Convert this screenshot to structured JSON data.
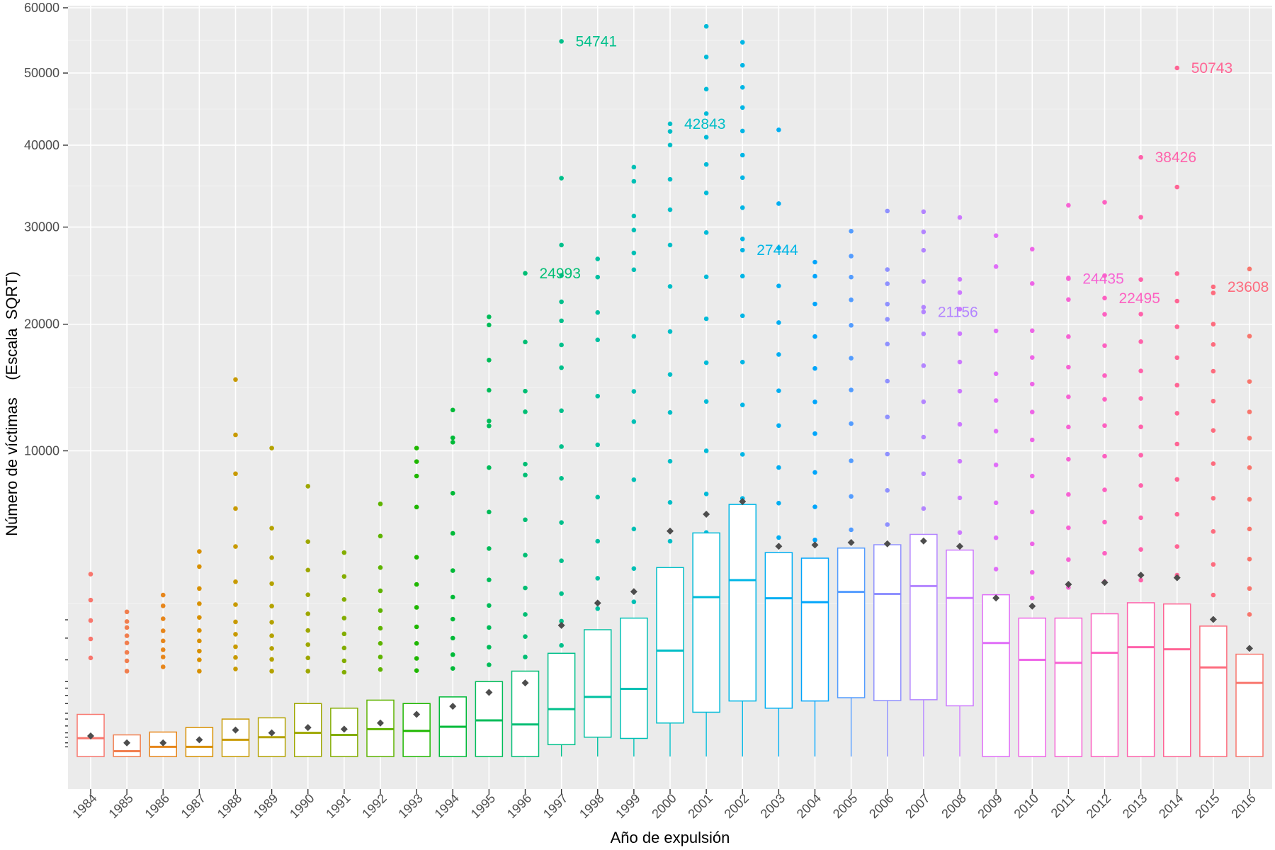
{
  "chart_data": {
    "type": "boxplot",
    "title": "",
    "xlabel": "Año de expulsión",
    "ylabel": "Número de víctimas    (Escala  SQRT)",
    "y_scale": "sqrt",
    "ylim": [
      0,
      60000
    ],
    "y_major_ticks": [
      10000,
      20000,
      30000,
      40000,
      50000,
      60000
    ],
    "y_tick_labels": [
      "10000",
      "20000",
      "30000",
      "40000",
      "50000",
      "60000"
    ],
    "y_rug_ticks": [
      2000,
      1500,
      1000,
      600,
      500,
      400,
      300,
      200,
      150,
      100,
      60,
      40,
      20,
      10
    ],
    "grid": true,
    "categories": [
      "1984",
      "1985",
      "1986",
      "1987",
      "1988",
      "1989",
      "1990",
      "1991",
      "1992",
      "1993",
      "1994",
      "1995",
      "1996",
      "1997",
      "1998",
      "1999",
      "2000",
      "2001",
      "2002",
      "2003",
      "2004",
      "2005",
      "2006",
      "2007",
      "2008",
      "2009",
      "2010",
      "2011",
      "2012",
      "2013",
      "2014",
      "2015",
      "2016"
    ],
    "colors": [
      "#F8766D",
      "#F17E4E",
      "#E7861B",
      "#D89000",
      "#C89A00",
      "#B4A200",
      "#9EA700",
      "#83AD00",
      "#5EB300",
      "#1FB700",
      "#00BA38",
      "#00BC59",
      "#00BE74",
      "#00C08B",
      "#00C1A1",
      "#00C0B5",
      "#00BEC7",
      "#00BBD8",
      "#00B6E6",
      "#00AEF2",
      "#00A5FB",
      "#539CFF",
      "#8F91FF",
      "#B385FF",
      "#CD79FF",
      "#E06EF8",
      "#EE66E7",
      "#F763D4",
      "#FD61C1",
      "#FF62AB",
      "#FF6595",
      "#FD6C7E",
      "#F8766D"
    ],
    "box_stats": [
      {
        "q1": 0,
        "median": 36,
        "q3": 190,
        "whisker_high": 190,
        "mean": 45
      },
      {
        "q1": 0,
        "median": 3,
        "q3": 50,
        "whisker_high": 50,
        "mean": 20
      },
      {
        "q1": 0,
        "median": 10,
        "q3": 64,
        "whisker_high": 64,
        "mean": 20
      },
      {
        "q1": 0,
        "median": 10,
        "q3": 90,
        "whisker_high": 90,
        "mean": 30
      },
      {
        "q1": 0,
        "median": 30,
        "q3": 150,
        "whisker_high": 150,
        "mean": 75
      },
      {
        "q1": 0,
        "median": 40,
        "q3": 160,
        "whisker_high": 160,
        "mean": 60
      },
      {
        "q1": 0,
        "median": 60,
        "q3": 300,
        "whisker_high": 300,
        "mean": 90
      },
      {
        "q1": 0,
        "median": 50,
        "q3": 250,
        "whisker_high": 250,
        "mean": 80
      },
      {
        "q1": 0,
        "median": 80,
        "q3": 340,
        "whisker_high": 340,
        "mean": 120
      },
      {
        "q1": 0,
        "median": 70,
        "q3": 300,
        "whisker_high": 300,
        "mean": 190
      },
      {
        "q1": 0,
        "median": 95,
        "q3": 380,
        "whisker_high": 380,
        "mean": 270
      },
      {
        "q1": 0,
        "median": 140,
        "q3": 600,
        "whisker_high": 600,
        "mean": 440
      },
      {
        "q1": 0,
        "median": 110,
        "q3": 780,
        "whisker_high": 780,
        "mean": 580
      },
      {
        "q1": 15,
        "median": 240,
        "q3": 1140,
        "whisker_high": 1140,
        "mean": 1840
      },
      {
        "q1": 40,
        "median": 380,
        "q3": 1720,
        "whisker_high": 1720,
        "mean": 2520
      },
      {
        "q1": 35,
        "median": 490,
        "q3": 2050,
        "whisker_high": 2050,
        "mean": 2910
      },
      {
        "q1": 120,
        "median": 1200,
        "q3": 3820,
        "whisker_high": 3820,
        "mean": 5440
      },
      {
        "q1": 210,
        "median": 2720,
        "q3": 5350,
        "whisker_high": 5350,
        "mean": 6280
      },
      {
        "q1": 330,
        "median": 3330,
        "q3": 6800,
        "whisker_high": 6800,
        "mean": 6960
      },
      {
        "q1": 250,
        "median": 2680,
        "q3": 4450,
        "whisker_high": 4450,
        "mean": 4730
      },
      {
        "q1": 330,
        "median": 2550,
        "q3": 4210,
        "whisker_high": 4210,
        "mean": 4790
      },
      {
        "q1": 370,
        "median": 2900,
        "q3": 4650,
        "whisker_high": 4650,
        "mean": 4900
      },
      {
        "q1": 335,
        "median": 2830,
        "q3": 4800,
        "whisker_high": 4800,
        "mean": 4840
      },
      {
        "q1": 345,
        "median": 3110,
        "q3": 5280,
        "whisker_high": 5280,
        "mean": 4970
      },
      {
        "q1": 275,
        "median": 2690,
        "q3": 4560,
        "whisker_high": 4560,
        "mean": 4730
      },
      {
        "q1": 0,
        "median": 1380,
        "q3": 2800,
        "whisker_high": 2800,
        "mean": 2690
      },
      {
        "q1": 0,
        "median": 1000,
        "q3": 2050,
        "whisker_high": 2050,
        "mean": 2420
      },
      {
        "q1": 0,
        "median": 940,
        "q3": 2050,
        "whisker_high": 2050,
        "mean": 3170
      },
      {
        "q1": 0,
        "median": 1150,
        "q3": 2180,
        "whisker_high": 2180,
        "mean": 3240
      },
      {
        "q1": 0,
        "median": 1280,
        "q3": 2530,
        "whisker_high": 2530,
        "mean": 3520
      },
      {
        "q1": 0,
        "median": 1230,
        "q3": 2490,
        "whisker_high": 2490,
        "mean": 3420
      },
      {
        "q1": 0,
        "median": 850,
        "q3": 1820,
        "whisker_high": 1820,
        "mean": 2010
      },
      {
        "q1": 0,
        "median": 580,
        "q3": 1120,
        "whisker_high": 1120,
        "mean": 1250
      }
    ],
    "outliers": [
      [
        1040,
        1480,
        1980,
        2620,
        3560
      ],
      [
        780,
        980,
        1160,
        1380,
        1560,
        1780,
        1950,
        2240
      ],
      [
        860,
        1060,
        1220,
        1430,
        1690,
        2030,
        2430,
        2790
      ],
      [
        780,
        1000,
        1190,
        1430,
        1700,
        2070,
        2500,
        3020,
        3860,
        4500
      ],
      [
        820,
        1050,
        1290,
        1600,
        1940,
        2470,
        3270,
        4720,
        6580,
        8560,
        11070,
        15210
      ],
      [
        780,
        1010,
        1250,
        1560,
        1930,
        2420,
        3200,
        4230,
        5580,
        10180
      ],
      [
        780,
        1040,
        1340,
        1700,
        2180,
        2800,
        3720,
        4940,
        7820
      ],
      [
        760,
        980,
        1260,
        1610,
        2050,
        2640,
        3470,
        4450
      ],
      [
        810,
        1060,
        1370,
        1760,
        2280,
        2940,
        3820,
        5200,
        6830
      ],
      [
        790,
        1030,
        1370,
        1800,
        2380,
        3170,
        4250,
        6660,
        8420,
        9310,
        10180
      ],
      [
        830,
        1110,
        1500,
        2020,
        2720,
        3700,
        5330,
        7420,
        10570,
        10870,
        12850
      ],
      [
        900,
        1280,
        1780,
        2440,
        3340,
        4630,
        6400,
        8930,
        11700,
        12050,
        14360,
        16820,
        19930,
        20690
      ],
      [
        1060,
        1540,
        2160,
        3040,
        4340,
        6000,
        8480,
        9150,
        12720,
        14290,
        18390,
        24993
      ],
      [
        1320,
        1960,
        2840,
        4100,
        5860,
        8280,
        10280,
        12800,
        16180,
        18130,
        20320,
        22130,
        24770,
        28000,
        35800,
        54741
      ],
      [
        1570,
        2340,
        3400,
        4960,
        7200,
        10400,
        13900,
        18580,
        21100,
        24600,
        26500
      ],
      [
        1680,
        2560,
        3780,
        5540,
        8200,
        12000,
        14270,
        18900,
        25360,
        27140,
        29660,
        31270,
        35410,
        37180
      ],
      [
        3570,
        4960,
        6910,
        9330,
        12670,
        15620,
        19330,
        23650,
        28000,
        32000,
        35660,
        40020,
        41820,
        42843
      ],
      [
        3770,
        5370,
        7380,
        10000,
        13490,
        16600,
        20510,
        24630,
        29380,
        34000,
        37520,
        41050,
        44240,
        47670,
        52380,
        57060
      ],
      [
        3570,
        5100,
        7130,
        9770,
        13230,
        16650,
        20790,
        24700,
        28670,
        32240,
        35860,
        38710,
        41880,
        45080,
        47930,
        51140,
        54600,
        27444
      ],
      [
        3820,
        5130,
        6870,
        8940,
        11720,
        14320,
        17300,
        20150,
        23700,
        27690,
        32720,
        42030
      ],
      [
        3740,
        5020,
        6670,
        8640,
        11160,
        13460,
        16120,
        18880,
        21920,
        24690,
        26160
      ],
      [
        4150,
        5500,
        7240,
        9360,
        11860,
        14380,
        16980,
        19900,
        22320,
        24600,
        26800,
        29540
      ],
      [
        4310,
        5760,
        7580,
        9790,
        12340,
        15080,
        18210,
        20460,
        21910,
        23920,
        25380,
        31850
      ],
      [
        4950,
        6580,
        8560,
        10920,
        13470,
        16350,
        19120,
        21610,
        24150,
        27430,
        29460,
        31770,
        21156
      ],
      [
        3970,
        5370,
        7160,
        9330,
        11810,
        14290,
        16660,
        19140,
        21420,
        23040,
        24370,
        31100
      ],
      [
        2750,
        3760,
        5120,
        6890,
        9100,
        11330,
        13560,
        15680,
        19390,
        25690,
        29040
      ],
      [
        2690,
        3630,
        4840,
        6400,
        8420,
        10730,
        12700,
        14850,
        17040,
        19410,
        23940,
        27550
      ],
      [
        3060,
        4150,
        5600,
        7350,
        9460,
        11620,
        13850,
        16230,
        18870,
        22350,
        24510,
        32520,
        24435
      ],
      [
        3270,
        4420,
        5880,
        7610,
        9650,
        11720,
        13660,
        15530,
        18070,
        20930,
        24750,
        32880,
        22495
      ],
      [
        3330,
        4590,
        6100,
        7860,
        9720,
        11630,
        13720,
        15910,
        18420,
        20950,
        24350,
        31130,
        38426
      ],
      [
        3520,
        4720,
        6280,
        8220,
        10450,
        12610,
        14760,
        17030,
        19770,
        22200,
        24960,
        34710,
        50743
      ],
      [
        2790,
        3950,
        5420,
        7140,
        9180,
        11380,
        13520,
        15890,
        18170,
        20010,
        23000,
        23608
      ],
      [
        2160,
        3020,
        4170,
        5540,
        7080,
        8930,
        10850,
        12710,
        15050,
        18910,
        25440
      ]
    ],
    "annotations": [
      {
        "category": "1996",
        "value": 24993,
        "label": "24993"
      },
      {
        "category": "1997",
        "value": 54741,
        "label": "54741"
      },
      {
        "category": "2000",
        "value": 42843,
        "label": "42843"
      },
      {
        "category": "2002",
        "value": 27444,
        "label": "27444"
      },
      {
        "category": "2007",
        "value": 21156,
        "label": "21156"
      },
      {
        "category": "2011",
        "value": 24435,
        "label": "24435"
      },
      {
        "category": "2012",
        "value": 22495,
        "label": "22495"
      },
      {
        "category": "2013",
        "value": 38426,
        "label": "38426"
      },
      {
        "category": "2014",
        "value": 50743,
        "label": "50743"
      },
      {
        "category": "2015",
        "value": 23608,
        "label": "23608"
      }
    ]
  }
}
